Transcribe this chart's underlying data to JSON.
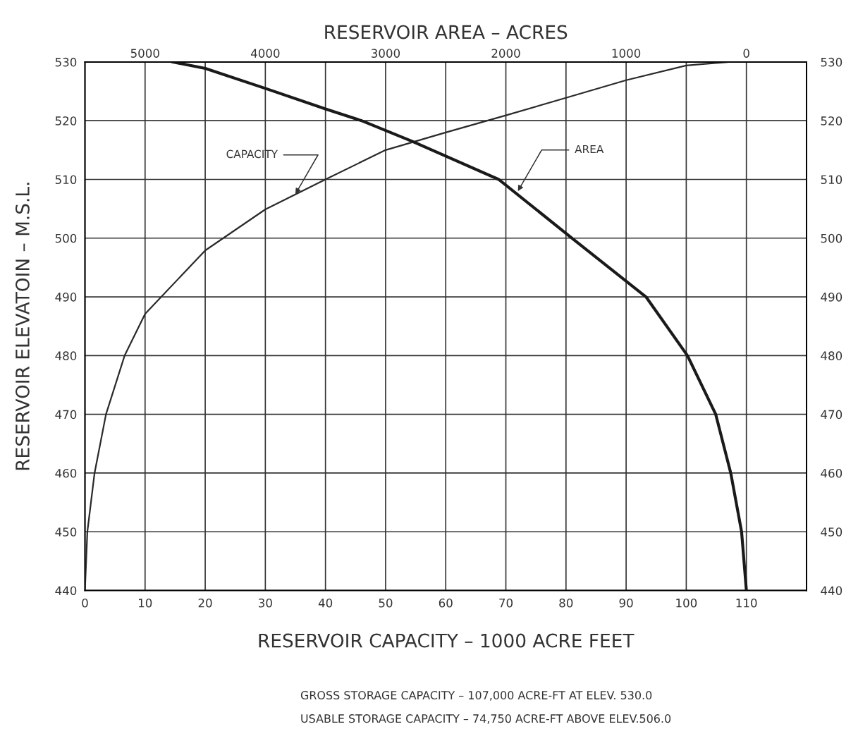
{
  "chart_data": {
    "type": "line",
    "xlabel": "RESERVOIR CAPACITY – 1000 ACRE FEET",
    "ylabel": "RESERVOIR ELEVATOIN – M.S.L.",
    "x2label": "RESERVOIR AREA – ACRES",
    "xlim": [
      0,
      120
    ],
    "xticks": [
      0,
      10,
      20,
      30,
      40,
      50,
      60,
      70,
      80,
      90,
      100,
      110,
      {
        "value": 120,
        "label": null
      }
    ],
    "x2lim": [
      5500,
      -500
    ],
    "x2ticks": [
      5000,
      4000,
      3000,
      2000,
      1000,
      0
    ],
    "ylim": [
      440,
      530
    ],
    "yticks": [
      440,
      450,
      460,
      470,
      480,
      490,
      500,
      510,
      520,
      530
    ],
    "y2lim": [
      440,
      530
    ],
    "y2ticks": [
      440,
      450,
      460,
      470,
      480,
      490,
      500,
      510,
      520,
      530
    ],
    "grid": true,
    "marker": "none",
    "line_style": "solid",
    "series": [
      {
        "color": "#2a2a2a",
        "x": [
          0,
          0.4,
          1.6,
          3.5,
          6.6,
          10,
          20,
          30,
          40,
          50,
          60,
          70,
          80,
          90,
          100,
          107
        ],
        "values": [
          440,
          450,
          460,
          470,
          480,
          487.1,
          497.9,
          504.9,
          510,
          515,
          518,
          520.9,
          523.9,
          526.9,
          529.4,
          530
        ]
      },
      {
        "color": "#1a1a1a",
        "axis": "x2",
        "x": [
          0,
          40,
          130,
          255,
          490,
          835,
          1450,
          2060,
          2780,
          3200,
          3500,
          4000,
          4500,
          4770
        ],
        "values": [
          440,
          450,
          460,
          470,
          480,
          490,
          500,
          510,
          516.5,
          520,
          522,
          525.5,
          528.9,
          530
        ]
      }
    ],
    "annotations": [
      {
        "text": "CAPACITY",
        "x": 35,
        "y": 507.5
      },
      {
        "text": "AREA",
        "x": 72,
        "y": 508
      },
      "GROSS STORAGE CAPACITY – 107,000 ACRE-FT AT ELEV. 530.0",
      "USABLE STORAGE CAPACITY – 74,750 ACRE-FT ABOVE ELEV.506.0"
    ]
  }
}
